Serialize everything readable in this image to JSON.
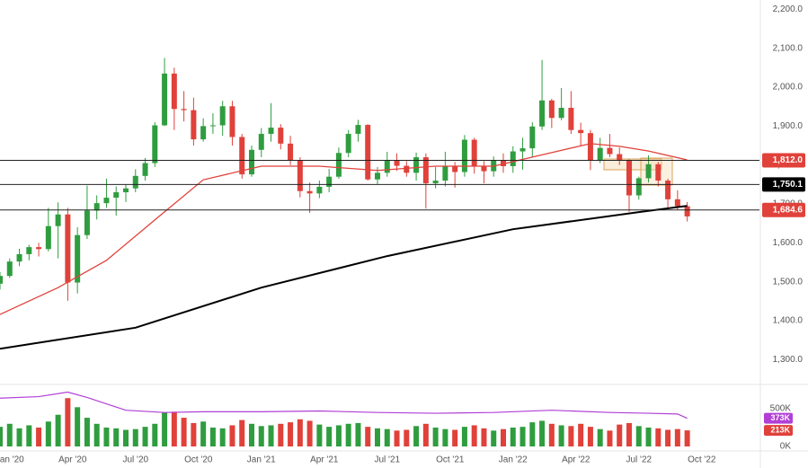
{
  "chart_data": {
    "type": "candlestick",
    "x": [
      -2,
      0,
      2,
      4,
      6,
      8,
      10,
      12,
      14,
      16,
      18,
      20,
      22,
      24,
      26,
      28,
      30,
      32,
      34,
      36,
      38,
      40,
      42,
      44,
      46,
      48,
      50,
      52,
      54,
      56,
      58,
      60,
      62,
      64,
      66,
      68,
      70,
      72,
      74,
      76,
      78,
      80,
      82,
      84,
      86,
      88,
      90,
      92,
      94,
      96,
      98,
      100,
      102,
      104,
      106,
      108,
      110,
      112,
      114,
      116,
      118,
      120,
      122,
      124,
      126,
      128,
      130,
      132,
      134,
      136,
      138,
      140
    ],
    "ohlc": [
      [
        1495,
        1525,
        1480,
        1515
      ],
      [
        1515,
        1560,
        1510,
        1552
      ],
      [
        1552,
        1585,
        1540,
        1571
      ],
      [
        1571,
        1595,
        1555,
        1589
      ],
      [
        1589,
        1600,
        1565,
        1584
      ],
      [
        1584,
        1690,
        1578,
        1643
      ],
      [
        1643,
        1704,
        1560,
        1673
      ],
      [
        1673,
        1690,
        1451,
        1498
      ],
      [
        1498,
        1640,
        1470,
        1620
      ],
      [
        1620,
        1747,
        1610,
        1683
      ],
      [
        1683,
        1722,
        1660,
        1702
      ],
      [
        1702,
        1765,
        1690,
        1716
      ],
      [
        1716,
        1745,
        1670,
        1730
      ],
      [
        1730,
        1750,
        1705,
        1740
      ],
      [
        1740,
        1789,
        1730,
        1772
      ],
      [
        1772,
        1818,
        1760,
        1805
      ],
      [
        1805,
        1910,
        1795,
        1902
      ],
      [
        1902,
        2075,
        1900,
        2035
      ],
      [
        2035,
        2050,
        1890,
        1944
      ],
      [
        1944,
        1990,
        1912,
        1941
      ],
      [
        1941,
        1973,
        1850,
        1866
      ],
      [
        1866,
        1920,
        1860,
        1900
      ],
      [
        1900,
        1933,
        1880,
        1902
      ],
      [
        1902,
        1965,
        1875,
        1951
      ],
      [
        1951,
        1965,
        1850,
        1872
      ],
      [
        1872,
        1880,
        1765,
        1776
      ],
      [
        1776,
        1850,
        1770,
        1839
      ],
      [
        1839,
        1895,
        1820,
        1880
      ],
      [
        1880,
        1959,
        1860,
        1896
      ],
      [
        1896,
        1905,
        1840,
        1855
      ],
      [
        1855,
        1875,
        1800,
        1812
      ],
      [
        1812,
        1820,
        1717,
        1733
      ],
      [
        1733,
        1755,
        1677,
        1727
      ],
      [
        1727,
        1760,
        1715,
        1744
      ],
      [
        1744,
        1790,
        1730,
        1770
      ],
      [
        1770,
        1845,
        1765,
        1831
      ],
      [
        1831,
        1890,
        1820,
        1880
      ],
      [
        1880,
        1916,
        1860,
        1903
      ],
      [
        1903,
        1905,
        1760,
        1763
      ],
      [
        1763,
        1795,
        1750,
        1780
      ],
      [
        1780,
        1834,
        1770,
        1812
      ],
      [
        1812,
        1830,
        1785,
        1798
      ],
      [
        1798,
        1810,
        1770,
        1780
      ],
      [
        1780,
        1832,
        1760,
        1820
      ],
      [
        1820,
        1830,
        1688,
        1753
      ],
      [
        1753,
        1795,
        1740,
        1760
      ],
      [
        1760,
        1834,
        1745,
        1796
      ],
      [
        1796,
        1808,
        1742,
        1782
      ],
      [
        1782,
        1877,
        1770,
        1865
      ],
      [
        1865,
        1870,
        1778,
        1797
      ],
      [
        1797,
        1810,
        1753,
        1784
      ],
      [
        1784,
        1822,
        1770,
        1811
      ],
      [
        1811,
        1830,
        1780,
        1797
      ],
      [
        1797,
        1848,
        1780,
        1835
      ],
      [
        1835,
        1870,
        1788,
        1843
      ],
      [
        1843,
        1910,
        1820,
        1899
      ],
      [
        1899,
        2070,
        1890,
        1966
      ],
      [
        1966,
        1970,
        1895,
        1921
      ],
      [
        1921,
        1998,
        1915,
        1947
      ],
      [
        1947,
        1990,
        1880,
        1890
      ],
      [
        1890,
        1909,
        1850,
        1882
      ],
      [
        1882,
        1890,
        1787,
        1811
      ],
      [
        1811,
        1870,
        1805,
        1844
      ],
      [
        1844,
        1880,
        1820,
        1828
      ],
      [
        1828,
        1845,
        1800,
        1812
      ],
      [
        1812,
        1815,
        1680,
        1722
      ],
      [
        1722,
        1770,
        1711,
        1766
      ],
      [
        1766,
        1825,
        1755,
        1802
      ],
      [
        1802,
        1808,
        1745,
        1760
      ],
      [
        1760,
        1765,
        1690,
        1712
      ],
      [
        1712,
        1735,
        1685,
        1694
      ],
      [
        1694,
        1705,
        1655,
        1668
      ]
    ],
    "volume": [
      260,
      300,
      240,
      280,
      250,
      330,
      420,
      640,
      520,
      380,
      300,
      250,
      240,
      220,
      230,
      260,
      300,
      450,
      460,
      380,
      310,
      330,
      250,
      240,
      280,
      350,
      300,
      270,
      280,
      300,
      320,
      360,
      340,
      290,
      260,
      280,
      300,
      310,
      260,
      240,
      230,
      210,
      220,
      270,
      300,
      250,
      230,
      220,
      260,
      280,
      240,
      210,
      230,
      250,
      260,
      320,
      340,
      300,
      280,
      270,
      300,
      260,
      230,
      210,
      290,
      310,
      270,
      250,
      240,
      220,
      230,
      213
    ],
    "up_color": "#2f9d3f",
    "down_color": "#e0413a",
    "ma_lines": [
      {
        "color": "#e0413a",
        "x": [
          -2,
          10,
          20,
          30,
          40,
          52,
          64,
          76,
          88,
          100,
          112,
          120,
          126,
          132,
          140
        ],
        "values": [
          1416,
          1485,
          1555,
          1659,
          1762,
          1797,
          1797,
          1786,
          1797,
          1797,
          1832,
          1855,
          1848,
          1836,
          1813
        ]
      },
      {
        "color": "#000000",
        "x": [
          -2,
          26,
          52,
          78,
          104,
          130,
          140
        ],
        "values": [
          1328,
          1382,
          1485,
          1566,
          1635,
          1679,
          1695
        ]
      }
    ],
    "volume_ma": {
      "color": "#b13fd6",
      "x": [
        -2,
        6,
        12,
        16,
        24,
        32,
        40,
        52,
        64,
        76,
        88,
        100,
        112,
        124,
        132,
        138,
        140
      ],
      "values": [
        640,
        660,
        720,
        650,
        480,
        450,
        460,
        460,
        470,
        450,
        440,
        450,
        480,
        450,
        440,
        430,
        373
      ]
    },
    "levels": [
      {
        "value": 1812.0,
        "label": "1,812.0",
        "color": "#e0413a"
      },
      {
        "value": 1750.1,
        "label": "1,750.1",
        "color": "#000000"
      },
      {
        "value": 1684.6,
        "label": "1,684.6",
        "color": "#e0413a"
      }
    ],
    "volume_markers": [
      {
        "value": 373,
        "label": "373K",
        "color": "#b13fd6"
      },
      {
        "value": 213,
        "label": "213K",
        "color": "#e0413a"
      }
    ],
    "xlim": [
      -2,
      154
    ],
    "xticks": [
      {
        "value": 0,
        "label": "Jan '20"
      },
      {
        "value": 13,
        "label": "Apr '20"
      },
      {
        "value": 26,
        "label": "Jul '20"
      },
      {
        "value": 39,
        "label": "Oct '20"
      },
      {
        "value": 52,
        "label": "Jan '21"
      },
      {
        "value": 65,
        "label": "Apr '21"
      },
      {
        "value": 78,
        "label": "Jul '21"
      },
      {
        "value": 91,
        "label": "Oct '21"
      },
      {
        "value": 104,
        "label": "Jan '22"
      },
      {
        "value": 117,
        "label": "Apr '22"
      },
      {
        "value": 130,
        "label": "Jul '22"
      },
      {
        "value": 143,
        "label": "Oct '22"
      }
    ],
    "ylim": [
      1250,
      2224
    ],
    "yticks": [
      {
        "value": 1300,
        "label": "1,300.0"
      },
      {
        "value": 1400,
        "label": "1,400.0"
      },
      {
        "value": 1500,
        "label": "1,500.0"
      },
      {
        "value": 1600,
        "label": "1,600.0"
      },
      {
        "value": 1700,
        "label": "1,700.0"
      },
      {
        "value": 1800,
        "label": "1,800.0"
      },
      {
        "value": 1900,
        "label": "1,900.0"
      },
      {
        "value": 2000,
        "label": "2,000.0"
      },
      {
        "value": 2100,
        "label": "2,100.0"
      },
      {
        "value": 2200,
        "label": "2,200.0"
      }
    ],
    "vlim": [
      0,
      750
    ],
    "vticks": [
      {
        "value": 0,
        "label": "0K"
      },
      {
        "value": 500,
        "label": "500K"
      }
    ],
    "grid": false
  }
}
